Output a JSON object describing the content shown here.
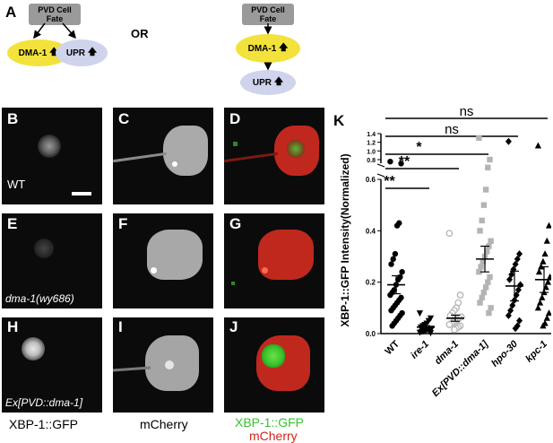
{
  "panel_letters": {
    "a": "A",
    "b": "B",
    "c": "C",
    "d": "D",
    "e": "E",
    "f": "F",
    "g": "G",
    "h": "H",
    "i": "I",
    "j": "J",
    "k": "K"
  },
  "schematic": {
    "left": {
      "top_box": "PVD Cell Fate",
      "dma": "DMA-1",
      "upr": "UPR"
    },
    "or_label": "OR",
    "right": {
      "top_box": "PVD Cell Fate",
      "dma": "DMA-1",
      "upr": "UPR"
    },
    "up_arrow": "🡅"
  },
  "row_labels": {
    "wt": "WT",
    "dma1": "dma-1(wy686)",
    "ex": "Ex[PVD::dma-1]"
  },
  "column_captions": {
    "c1": "XBP-1::GFP",
    "c2": "mCherry",
    "c3_green": "XBP-1::GFP",
    "c3_red": "mCherry"
  },
  "colors": {
    "gfp_green": "#36c32a",
    "mcherry_red": "#d4231b",
    "gray_series": "#b4b4b4",
    "yellow": "#f3e23c",
    "lavender": "#cfd3ec"
  },
  "chart_data": {
    "type": "scatter",
    "ylabel": "XBP-1::GFP Intensity(Normalized)",
    "categories": [
      "WT",
      "ire-1",
      "dma-1",
      "Ex[PVD::dma-1]",
      "hpo-30",
      "kpc-1"
    ],
    "y_axis": {
      "lower_range": [
        0,
        0.6
      ],
      "lower_ticks": [
        "0.0",
        "0.2",
        "0.4",
        "0.6"
      ],
      "upper_range": [
        0.6,
        1.4
      ],
      "upper_ticks": [
        "0.8",
        "1.0",
        "1.2",
        "1.4"
      ],
      "broken": true
    },
    "series": [
      {
        "category": "WT",
        "marker": "circle-filled",
        "color": "#000000",
        "mean": 0.19,
        "sem": 0.035,
        "values": [
          0.78,
          0.76,
          0.43,
          0.42,
          0.31,
          0.29,
          0.27,
          0.24,
          0.22,
          0.21,
          0.19,
          0.17,
          0.16,
          0.15,
          0.14,
          0.13,
          0.12,
          0.11,
          0.1,
          0.09,
          0.08,
          0.07,
          0.06,
          0.05,
          0.04,
          0.03
        ]
      },
      {
        "category": "ire-1",
        "marker": "triangle-down-filled",
        "color": "#000000",
        "mean": 0.025,
        "sem": 0.006,
        "values": [
          0.08,
          0.06,
          0.05,
          0.04,
          0.035,
          0.03,
          0.025,
          0.02,
          0.018,
          0.015,
          0.012,
          0.01,
          0.008,
          0.005,
          0.003
        ]
      },
      {
        "category": "dma-1",
        "marker": "circle-open",
        "color": "#b4b4b4",
        "mean": 0.06,
        "sem": 0.012,
        "values": [
          0.39,
          0.15,
          0.12,
          0.1,
          0.09,
          0.08,
          0.07,
          0.065,
          0.06,
          0.055,
          0.05,
          0.045,
          0.04,
          0.035,
          0.03,
          0.025,
          0.02,
          0.015
        ]
      },
      {
        "category": "Ex[PVD::dma-1]",
        "marker": "square-filled",
        "color": "#b4b4b4",
        "mean": 0.29,
        "sem": 0.05,
        "values": [
          1.3,
          0.8,
          0.72,
          0.56,
          0.5,
          0.44,
          0.4,
          0.36,
          0.34,
          0.32,
          0.3,
          0.28,
          0.26,
          0.24,
          0.22,
          0.2,
          0.18,
          0.16,
          0.14,
          0.12,
          0.1,
          0.08
        ]
      },
      {
        "category": "hpo-30",
        "marker": "diamond-filled",
        "color": "#000000",
        "mean": 0.185,
        "sem": 0.058,
        "values": [
          1.22,
          0.31,
          0.29,
          0.27,
          0.25,
          0.23,
          0.21,
          0.19,
          0.17,
          0.15,
          0.13,
          0.11,
          0.09,
          0.07,
          0.05,
          0.03,
          0.02
        ]
      },
      {
        "category": "kpc-1",
        "marker": "triangle-up-filled",
        "color": "#000000",
        "mean": 0.21,
        "sem": 0.05,
        "values": [
          1.12,
          0.42,
          0.36,
          0.31,
          0.28,
          0.26,
          0.24,
          0.22,
          0.2,
          0.18,
          0.16,
          0.14,
          0.12,
          0.1,
          0.08,
          0.06,
          0.04,
          0.03
        ]
      }
    ],
    "significance": [
      {
        "from": "WT",
        "to": "kpc-1",
        "label": "ns"
      },
      {
        "from": "WT",
        "to": "hpo-30",
        "label": "ns"
      },
      {
        "from": "WT",
        "to": "Ex[PVD::dma-1]",
        "label": "*"
      },
      {
        "from": "WT",
        "to": "dma-1",
        "label": "**"
      },
      {
        "from": "WT",
        "to": "ire-1",
        "label": "**"
      }
    ]
  }
}
